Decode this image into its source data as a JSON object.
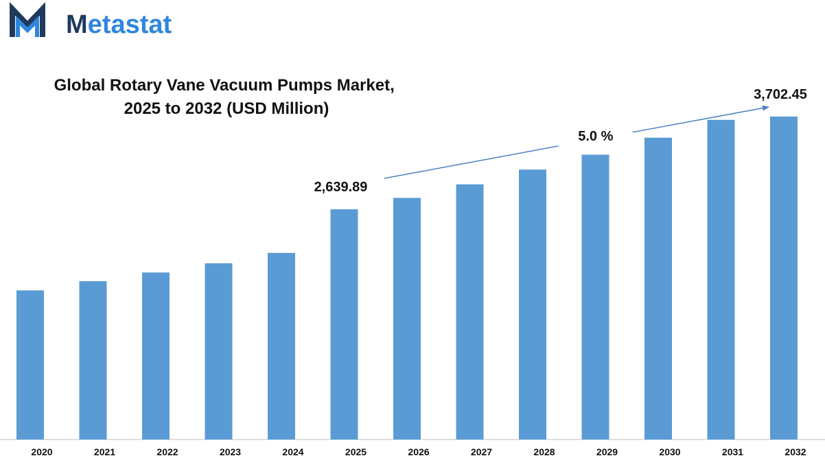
{
  "logo": {
    "text": "Metastat",
    "icon": "metastat-m-logo-icon",
    "colors": {
      "dark": "#1f3a5c",
      "accent": "#2e86de"
    }
  },
  "colors": {
    "bar": "#5b9bd5",
    "arrow": "#4a7ebf",
    "text": "#111111",
    "axis": "#bfbfbf"
  },
  "chart_data": {
    "type": "bar",
    "title": [
      "Global Rotary Vane Vacuum Pumps Market,",
      "2025 to 2032 (USD Million)"
    ],
    "categories": [
      "2020",
      "2021",
      "2022",
      "2023",
      "2024",
      "2025",
      "2026",
      "2027",
      "2028",
      "2029",
      "2030",
      "2031",
      "2032"
    ],
    "values": [
      1710,
      1815,
      1915,
      2020,
      2140,
      2639.89,
      2770,
      2925,
      3095,
      3265,
      3460,
      3665,
      3702.45
    ],
    "data_labels": [
      {
        "category": "2025",
        "text": "2,639.89"
      },
      {
        "category": "2032",
        "text": "3,702.45"
      }
    ],
    "annotations": [
      {
        "text": "5.0 %",
        "type": "cagr-arrow",
        "from": "2025",
        "to": "2032"
      }
    ],
    "ylim": [
      0,
      3702.45
    ],
    "grid": false,
    "legend": "none",
    "xlabel": "",
    "ylabel": ""
  }
}
